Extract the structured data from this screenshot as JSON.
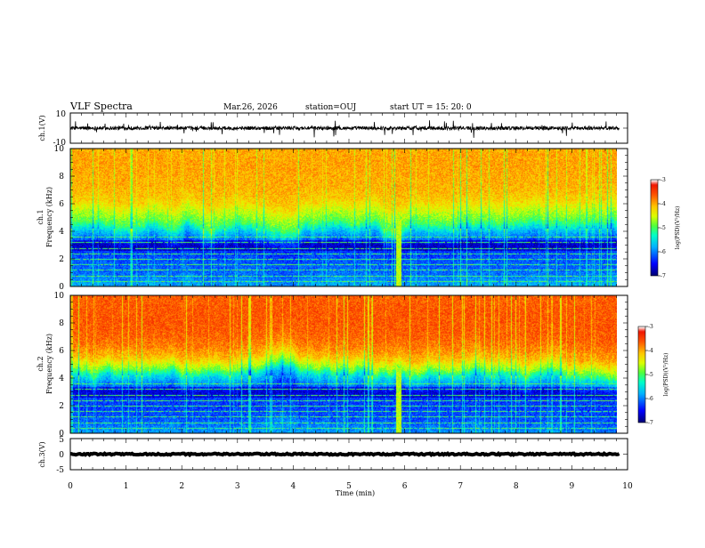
{
  "header": {
    "title": "VLF Spectra",
    "date": "Mar.26, 2026",
    "station": "station=OUJ",
    "start": "start  UT =  15: 20: 0"
  },
  "chart_data": {
    "type": "heatmap",
    "x": {
      "label": "Time  (min)",
      "range": [
        0,
        10
      ],
      "ticks": [
        "0",
        "1",
        "2",
        "3",
        "4",
        "5",
        "6",
        "7",
        "8",
        "9",
        "10"
      ],
      "data_end": 9.85
    },
    "panels": [
      {
        "id": "ch1-waveform",
        "type": "line",
        "ylabel": "ch.1(V)",
        "ylim": [
          -10,
          10
        ],
        "ticks": [
          "10",
          "-10"
        ],
        "baseline": 0,
        "noise_amplitude": 1.2,
        "burst_amplitude": 3
      },
      {
        "id": "ch1-spectrogram",
        "type": "heatmap",
        "ylabel_top": "ch.1",
        "ylabel": "Frequency (kHz)",
        "ylim": [
          0,
          10
        ],
        "ticks": [
          "0",
          "2",
          "4",
          "6",
          "8",
          "10"
        ],
        "colorbar": {
          "label": "log(PSD)(V²/Hz)",
          "range": [
            -7,
            -3
          ],
          "ticks": [
            "-3",
            "-4",
            "-5",
            "-6",
            "-7"
          ]
        },
        "profile": [
          {
            "f": 0,
            "v": -5.8
          },
          {
            "f": 1,
            "v": -6.1
          },
          {
            "f": 2,
            "v": -6.2
          },
          {
            "f": 3,
            "v": -6.4
          },
          {
            "f": 4,
            "v": -5.7
          },
          {
            "f": 4.6,
            "v": -5.0
          },
          {
            "f": 5.4,
            "v": -4.6
          },
          {
            "f": 6.2,
            "v": -4.2
          },
          {
            "f": 7,
            "v": -4.05
          },
          {
            "f": 8,
            "v": -4.0
          },
          {
            "f": 9,
            "v": -3.95
          },
          {
            "f": 10,
            "v": -4.0
          }
        ]
      },
      {
        "id": "ch2-spectrogram",
        "type": "heatmap",
        "ylabel_top": "ch.2",
        "ylabel": "Frequency (kHz)",
        "ylim": [
          0,
          10
        ],
        "ticks": [
          "0",
          "2",
          "4",
          "6",
          "8",
          "10"
        ],
        "colorbar": {
          "label": "log(PSD)(V²/Hz)",
          "range": [
            -7,
            -3
          ],
          "ticks": [
            "-3",
            "-4",
            "-5",
            "-6",
            "-7"
          ]
        },
        "profile": [
          {
            "f": 0,
            "v": -5.9
          },
          {
            "f": 1,
            "v": -6.2
          },
          {
            "f": 2,
            "v": -6.3
          },
          {
            "f": 3,
            "v": -6.3
          },
          {
            "f": 4,
            "v": -5.6
          },
          {
            "f": 4.6,
            "v": -4.8
          },
          {
            "f": 5.4,
            "v": -4.1
          },
          {
            "f": 6.2,
            "v": -3.8
          },
          {
            "f": 7,
            "v": -3.65
          },
          {
            "f": 8,
            "v": -3.6
          },
          {
            "f": 9,
            "v": -3.6
          },
          {
            "f": 10,
            "v": -3.65
          }
        ]
      },
      {
        "id": "ch3-waveform",
        "type": "line",
        "ylabel": "ch.3(V)",
        "ylim": [
          -5,
          5
        ],
        "ticks": [
          "5",
          "0",
          "-5"
        ],
        "baseline": 0,
        "noise_amplitude": 0.25
      }
    ],
    "features": {
      "tonal_lines_khz": [
        0.4,
        0.8,
        1.2,
        1.6,
        2.0,
        2.4,
        2.8,
        3.2,
        3.6
      ],
      "broadband_event_min": 5.88,
      "dark_band_khz": [
        2.6,
        3.4
      ]
    }
  }
}
